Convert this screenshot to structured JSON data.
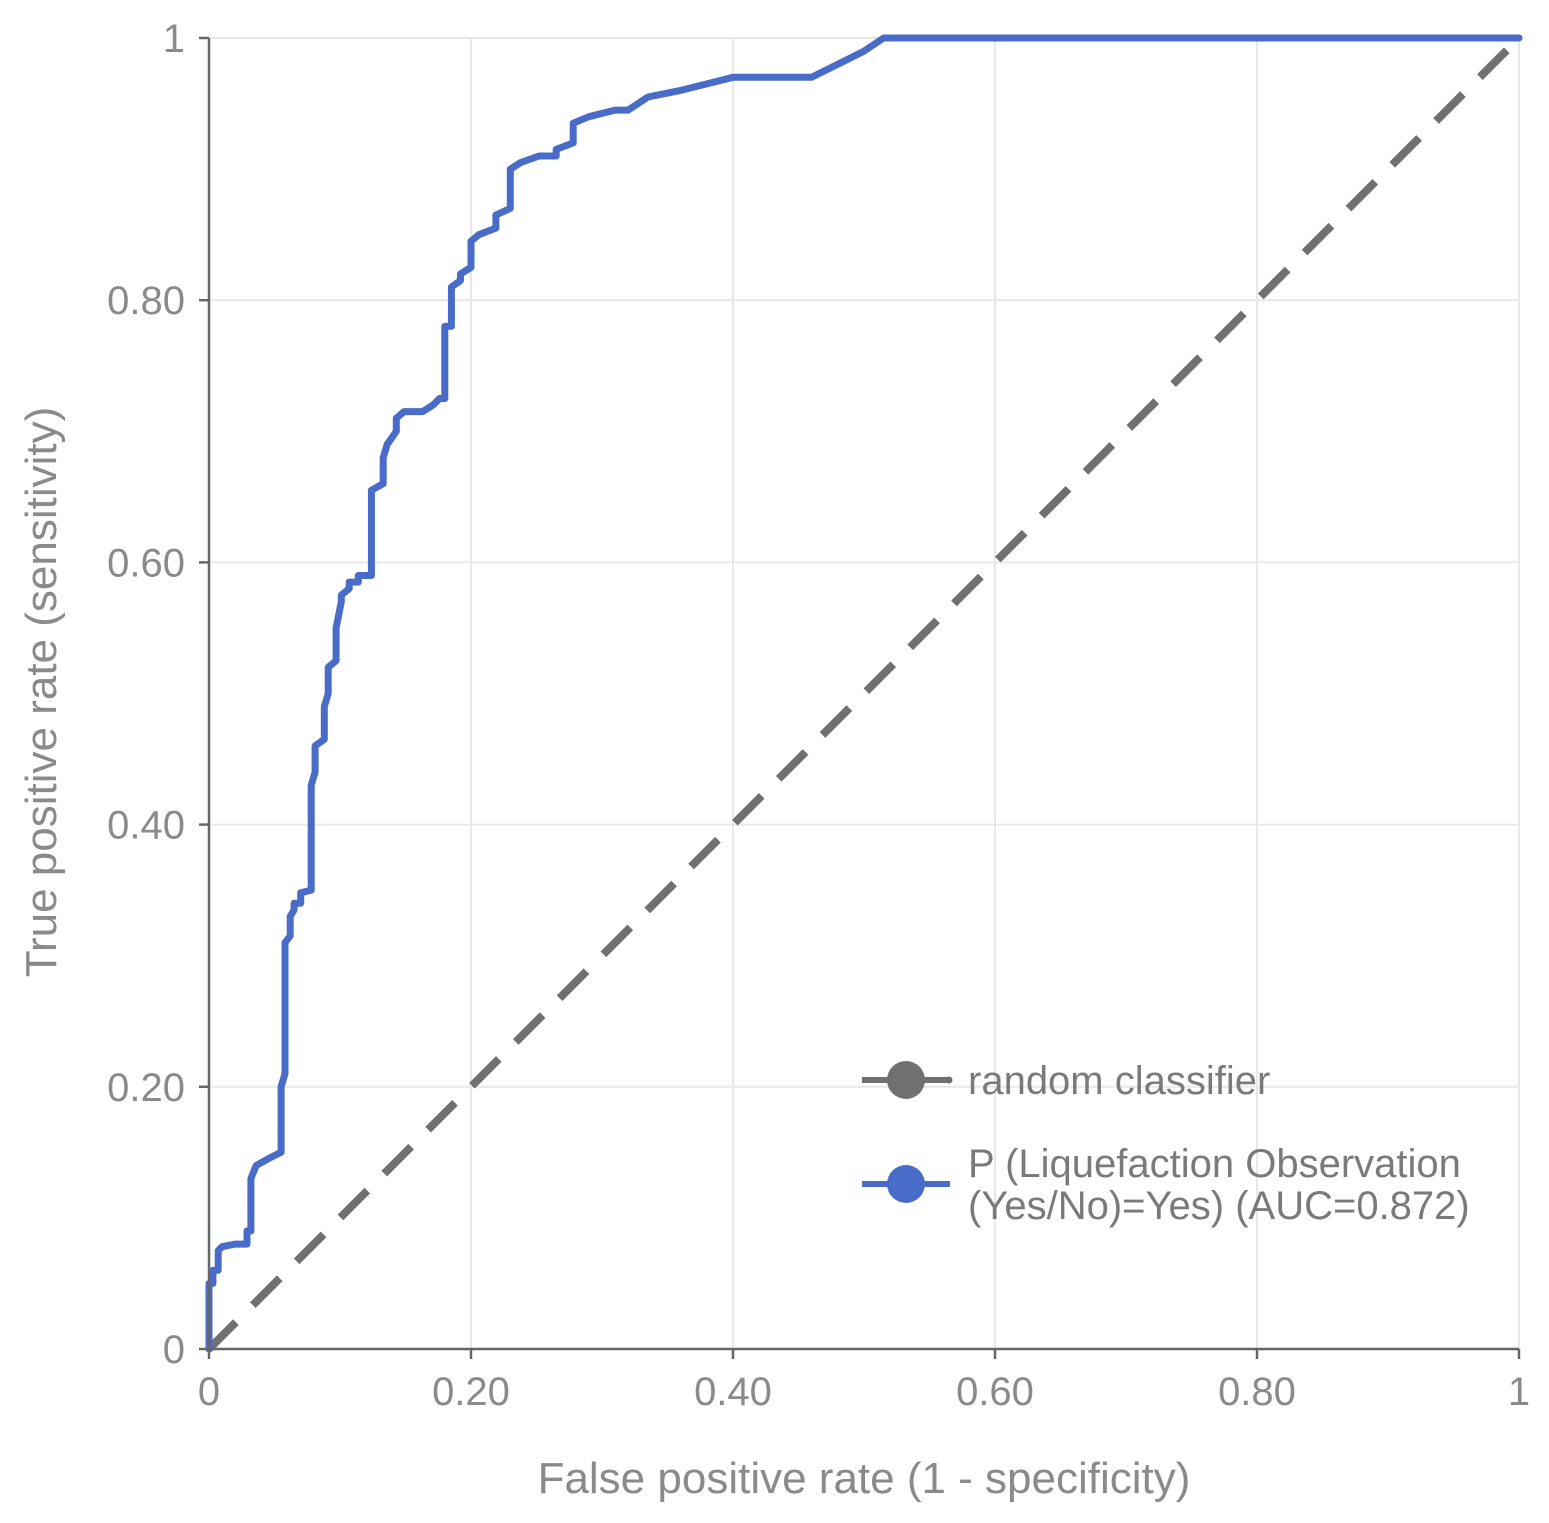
{
  "chart_data": {
    "type": "line",
    "xlabel": "False positive rate (1 - specificity)",
    "ylabel": "True positive rate (sensitivity)",
    "xlim": [
      0,
      1
    ],
    "ylim": [
      0,
      1
    ],
    "x_ticks": [
      0,
      0.2,
      0.4,
      0.6,
      0.8,
      1
    ],
    "x_tick_labels": [
      "0",
      "0.20",
      "0.40",
      "0.60",
      "0.80",
      "1"
    ],
    "y_ticks": [
      0,
      0.2,
      0.4,
      0.6,
      0.8,
      1
    ],
    "y_tick_labels": [
      "0",
      "0.20",
      "0.40",
      "0.60",
      "0.80",
      "1"
    ],
    "grid": true,
    "legend_position": "bottom-right",
    "series": [
      {
        "name": "random classifier",
        "color": "#707070",
        "dash": true,
        "x": [
          0,
          1
        ],
        "y": [
          0,
          1
        ]
      },
      {
        "name": "P (Liquefaction Observation (Yes/No)=Yes) (AUC=0.872)",
        "legend_lines": [
          "P (Liquefaction Observation",
          "(Yes/No)=Yes) (AUC=0.872)"
        ],
        "color": "#4a6cc9",
        "dash": false,
        "x": [
          0,
          0,
          0.003,
          0.003,
          0.007,
          0.007,
          0.01,
          0.02,
          0.029,
          0.029,
          0.032,
          0.032,
          0.036,
          0.045,
          0.055,
          0.055,
          0.058,
          0.058,
          0.062,
          0.062,
          0.065,
          0.065,
          0.07,
          0.07,
          0.078,
          0.078,
          0.081,
          0.081,
          0.088,
          0.088,
          0.091,
          0.091,
          0.097,
          0.097,
          0.101,
          0.101,
          0.107,
          0.107,
          0.114,
          0.114,
          0.124,
          0.124,
          0.133,
          0.133,
          0.136,
          0.136,
          0.143,
          0.143,
          0.149,
          0.163,
          0.171,
          0.176,
          0.18,
          0.18,
          0.185,
          0.185,
          0.192,
          0.192,
          0.2,
          0.2,
          0.206,
          0.206,
          0.219,
          0.219,
          0.23,
          0.23,
          0.238,
          0.252,
          0.265,
          0.265,
          0.278,
          0.278,
          0.29,
          0.31,
          0.32,
          0.335,
          0.36,
          0.38,
          0.4,
          0.46,
          0.47,
          0.48,
          0.49,
          0.5,
          0.515,
          0.6,
          0.77,
          0.77,
          1.0
        ],
        "y": [
          0,
          0.05,
          0.05,
          0.06,
          0.06,
          0.075,
          0.078,
          0.08,
          0.08,
          0.09,
          0.09,
          0.13,
          0.14,
          0.145,
          0.15,
          0.2,
          0.21,
          0.31,
          0.315,
          0.33,
          0.335,
          0.34,
          0.34,
          0.348,
          0.35,
          0.43,
          0.44,
          0.46,
          0.465,
          0.49,
          0.5,
          0.52,
          0.525,
          0.55,
          0.57,
          0.575,
          0.58,
          0.585,
          0.585,
          0.59,
          0.59,
          0.655,
          0.66,
          0.68,
          0.69,
          0.69,
          0.7,
          0.71,
          0.715,
          0.715,
          0.72,
          0.725,
          0.725,
          0.78,
          0.78,
          0.81,
          0.815,
          0.82,
          0.825,
          0.845,
          0.85,
          0.85,
          0.855,
          0.865,
          0.87,
          0.9,
          0.905,
          0.91,
          0.91,
          0.915,
          0.92,
          0.935,
          0.94,
          0.945,
          0.945,
          0.955,
          0.96,
          0.965,
          0.97,
          0.97,
          0.975,
          0.98,
          0.985,
          0.99,
          1.0,
          1.0,
          1.0,
          1.0,
          1.0
        ]
      }
    ]
  }
}
